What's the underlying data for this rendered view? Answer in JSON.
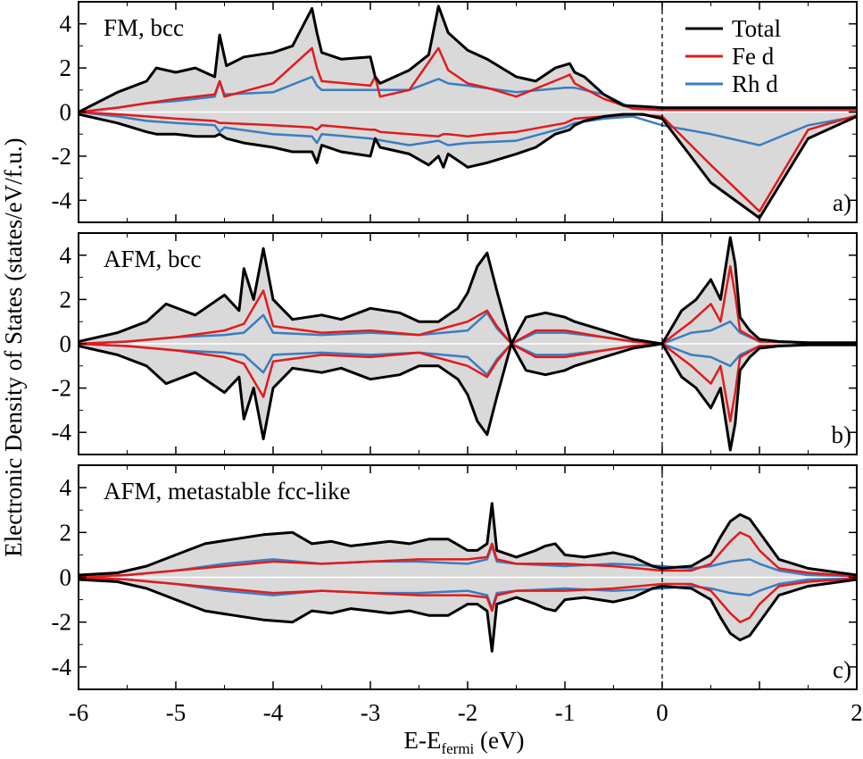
{
  "figure": {
    "ylabel": "Electronic Density of States (states/eV/f.u.)",
    "xlabel_main": "E-E",
    "xlabel_sub": "fermi",
    "xlabel_tail": " (eV)",
    "colors": {
      "total": "#000000",
      "fe": "#e31a1c",
      "rh": "#3a7dc0",
      "fill": "#d9d9d9"
    }
  },
  "chart_data": [
    {
      "type": "line",
      "panel_title": "FM, bcc",
      "panel_tag": "a)",
      "legend": {
        "placement": "top-right",
        "entries": [
          {
            "key": "total",
            "label": "Total"
          },
          {
            "key": "fe",
            "label": "Fe d"
          },
          {
            "key": "rh",
            "label": "Rh d"
          }
        ]
      },
      "xlim": [
        -6,
        2
      ],
      "ylim": [
        -5,
        5
      ],
      "xticks": [
        -6,
        -5,
        -4,
        -3,
        -2,
        -1,
        0,
        2
      ],
      "yticks": [
        4,
        2,
        0,
        -2,
        -4
      ],
      "fermi_line_x": 0,
      "series": [
        {
          "key": "total",
          "x": [
            -6,
            -5.6,
            -5.3,
            -5.2,
            -5.0,
            -4.8,
            -4.6,
            -4.55,
            -4.48,
            -4.3,
            -4.0,
            -3.8,
            -3.6,
            -3.55,
            -3.5,
            -3.3,
            -3.0,
            -2.95,
            -2.9,
            -2.6,
            -2.4,
            -2.3,
            -2.25,
            -2.2,
            -2.0,
            -1.8,
            -1.5,
            -1.3,
            -1.1,
            -0.95,
            -0.9,
            -0.8,
            -0.6,
            -0.4,
            -0.2,
            0,
            0.5,
            1.0,
            1.5,
            2.0
          ],
          "up": [
            0,
            0.9,
            1.4,
            2.0,
            1.8,
            2.0,
            1.6,
            3.5,
            2.1,
            2.5,
            2.7,
            3.0,
            4.7,
            3.6,
            2.7,
            2.4,
            2.5,
            1.6,
            1.3,
            1.9,
            2.6,
            4.8,
            4.2,
            3.6,
            2.8,
            2.4,
            1.6,
            1.4,
            2.0,
            2.2,
            1.8,
            1.6,
            0.8,
            0.3,
            0.25,
            0.2,
            0.2,
            0.2,
            0.2,
            0.2
          ],
          "down": [
            -0.1,
            -0.5,
            -0.9,
            -1.0,
            -1.0,
            -1.1,
            -1.1,
            -1.0,
            -1.2,
            -1.4,
            -1.6,
            -1.8,
            -1.8,
            -2.3,
            -1.5,
            -1.8,
            -2.0,
            -1.2,
            -1.6,
            -1.9,
            -2.4,
            -2.0,
            -2.5,
            -1.9,
            -2.5,
            -2.3,
            -1.9,
            -1.6,
            -1.0,
            -0.8,
            -0.6,
            -0.4,
            -0.2,
            -0.1,
            -0.1,
            -0.3,
            -3.2,
            -4.8,
            -1.2,
            -0.2
          ]
        },
        {
          "key": "fe",
          "x": [
            -6,
            -5.6,
            -5.3,
            -5.0,
            -4.6,
            -4.55,
            -4.5,
            -4.0,
            -3.6,
            -3.55,
            -3.5,
            -3.0,
            -2.95,
            -2.9,
            -2.6,
            -2.3,
            -2.25,
            -2.2,
            -2.0,
            -1.8,
            -1.5,
            -1.0,
            -0.95,
            -0.9,
            -0.6,
            -0.3,
            0,
            0.5,
            1.0,
            1.5,
            2.0
          ],
          "up": [
            0,
            0.2,
            0.4,
            0.6,
            0.8,
            1.4,
            0.7,
            1.3,
            2.9,
            2.0,
            1.4,
            1.2,
            1.6,
            0.7,
            1.0,
            2.9,
            2.4,
            1.9,
            1.3,
            1.1,
            0.7,
            1.6,
            1.7,
            1.3,
            0.6,
            0.15,
            0.1,
            0.1,
            0.1,
            0.1,
            0.1
          ],
          "down": [
            0,
            -0.1,
            -0.2,
            -0.3,
            -0.4,
            -0.5,
            -0.5,
            -0.6,
            -0.7,
            -0.8,
            -0.6,
            -0.8,
            -0.8,
            -0.9,
            -1.0,
            -1.1,
            -1.0,
            -1.0,
            -1.1,
            -1.0,
            -0.9,
            -0.5,
            -0.4,
            -0.3,
            -0.2,
            -0.1,
            -0.2,
            -2.4,
            -4.5,
            -0.8,
            -0.15
          ]
        },
        {
          "key": "rh",
          "x": [
            -6,
            -5.6,
            -5.3,
            -5.0,
            -4.6,
            -4.55,
            -4.5,
            -4.0,
            -3.6,
            -3.55,
            -3.5,
            -3.0,
            -2.6,
            -2.3,
            -2.2,
            -2.0,
            -1.5,
            -1.0,
            -0.9,
            -0.6,
            -0.3,
            0,
            0.5,
            1.0,
            1.5,
            2.0
          ],
          "up": [
            0,
            0.2,
            0.4,
            0.5,
            0.7,
            1.4,
            0.8,
            0.9,
            1.6,
            1.2,
            1.0,
            1.0,
            1.0,
            1.5,
            1.3,
            1.2,
            0.9,
            1.1,
            1.1,
            0.8,
            0.15,
            0.1,
            0.1,
            0.1,
            0.1,
            0.1
          ],
          "down": [
            0,
            -0.2,
            -0.4,
            -0.5,
            -0.6,
            -0.9,
            -0.7,
            -1.0,
            -1.1,
            -1.4,
            -1.0,
            -1.2,
            -1.5,
            -1.3,
            -1.5,
            -1.4,
            -1.3,
            -0.7,
            -0.5,
            -0.3,
            -0.2,
            -0.6,
            -1.0,
            -1.5,
            -0.6,
            -0.2
          ]
        }
      ]
    },
    {
      "type": "line",
      "panel_title": "AFM, bcc",
      "panel_tag": "b)",
      "xlim": [
        -6,
        2
      ],
      "ylim": [
        -5,
        5
      ],
      "xticks": [
        -6,
        -5,
        -4,
        -3,
        -2,
        -1,
        0,
        2
      ],
      "yticks": [
        4,
        2,
        0,
        -2,
        -4
      ],
      "fermi_line_x": 0,
      "series": [
        {
          "key": "total",
          "x": [
            -6,
            -5.6,
            -5.3,
            -5.1,
            -4.8,
            -4.5,
            -4.35,
            -4.3,
            -4.2,
            -4.1,
            -4.0,
            -3.8,
            -3.5,
            -3.3,
            -3.0,
            -2.7,
            -2.5,
            -2.3,
            -2.1,
            -2.0,
            -1.9,
            -1.8,
            -1.7,
            -1.55,
            -1.4,
            -1.2,
            -1.0,
            -0.9,
            -0.6,
            -0.3,
            0,
            0.2,
            0.35,
            0.5,
            0.6,
            0.7,
            0.75,
            0.8,
            0.9,
            1.0,
            1.2,
            1.5,
            2.0
          ],
          "up": [
            0.1,
            0.5,
            1.0,
            1.8,
            1.3,
            2.2,
            1.5,
            3.4,
            2.0,
            4.3,
            2.0,
            1.1,
            1.3,
            1.1,
            1.6,
            1.4,
            1.0,
            1.0,
            1.6,
            2.3,
            3.5,
            4.1,
            2.4,
            0,
            1.2,
            1.4,
            1.2,
            1.0,
            0.6,
            0.2,
            0.0,
            1.5,
            2.0,
            2.9,
            2.0,
            4.8,
            3.6,
            1.2,
            0.6,
            0.2,
            0.1,
            0.05,
            0.05
          ],
          "down": [
            -0.1,
            -0.5,
            -1.0,
            -1.8,
            -1.3,
            -2.2,
            -1.5,
            -3.4,
            -2.0,
            -4.3,
            -2.0,
            -1.1,
            -1.3,
            -1.1,
            -1.6,
            -1.4,
            -1.0,
            -1.0,
            -1.6,
            -2.3,
            -3.5,
            -4.1,
            -2.4,
            0,
            -1.2,
            -1.4,
            -1.2,
            -1.0,
            -0.6,
            -0.2,
            0.0,
            -1.5,
            -2.0,
            -2.9,
            -2.0,
            -4.8,
            -3.6,
            -1.2,
            -0.6,
            -0.2,
            -0.1,
            -0.05,
            -0.05
          ]
        },
        {
          "key": "fe",
          "x": [
            -6,
            -5.5,
            -5.0,
            -4.5,
            -4.3,
            -4.1,
            -4.0,
            -3.5,
            -3.0,
            -2.5,
            -2.0,
            -1.8,
            -1.7,
            -1.55,
            -1.3,
            -1.0,
            -0.6,
            -0.3,
            0,
            0.3,
            0.5,
            0.6,
            0.7,
            0.75,
            0.8,
            1.0,
            1.5,
            2.0
          ],
          "up": [
            0,
            0.1,
            0.3,
            0.6,
            0.9,
            2.4,
            0.8,
            0.5,
            0.6,
            0.4,
            1.0,
            1.5,
            0.8,
            0,
            0.6,
            0.6,
            0.3,
            0.1,
            0,
            1.0,
            1.8,
            1.0,
            3.5,
            2.2,
            0.6,
            0.1,
            0.05,
            0.05
          ],
          "down": [
            0,
            -0.1,
            -0.3,
            -0.6,
            -0.9,
            -2.4,
            -0.8,
            -0.5,
            -0.6,
            -0.4,
            -1.0,
            -1.5,
            -0.8,
            0,
            -0.6,
            -0.6,
            -0.3,
            -0.1,
            0,
            -1.0,
            -1.8,
            -1.0,
            -3.5,
            -2.2,
            -0.6,
            -0.1,
            -0.05,
            -0.05
          ]
        },
        {
          "key": "rh",
          "x": [
            -6,
            -5.5,
            -5.0,
            -4.5,
            -4.3,
            -4.1,
            -4.0,
            -3.5,
            -3.0,
            -2.5,
            -2.0,
            -1.8,
            -1.7,
            -1.55,
            -1.3,
            -1.0,
            -0.6,
            -0.3,
            0,
            0.3,
            0.5,
            0.7,
            0.8,
            1.0,
            1.5,
            2.0
          ],
          "up": [
            0,
            0.1,
            0.3,
            0.4,
            0.5,
            1.3,
            0.5,
            0.4,
            0.5,
            0.4,
            0.6,
            1.4,
            0.7,
            0,
            0.5,
            0.5,
            0.3,
            0.1,
            0,
            0.5,
            0.6,
            1.0,
            0.5,
            0.1,
            0.05,
            0.05
          ],
          "down": [
            0,
            -0.1,
            -0.3,
            -0.4,
            -0.5,
            -1.3,
            -0.5,
            -0.4,
            -0.5,
            -0.4,
            -0.6,
            -1.4,
            -0.7,
            0,
            -0.5,
            -0.5,
            -0.3,
            -0.1,
            0,
            -0.5,
            -0.6,
            -1.0,
            -0.5,
            -0.1,
            -0.05,
            -0.05
          ]
        }
      ]
    },
    {
      "type": "line",
      "panel_title": "AFM, metastable fcc-like",
      "panel_tag": "c)",
      "xlim": [
        -6,
        2
      ],
      "ylim": [
        -5,
        5
      ],
      "xticks": [
        -6,
        -5,
        -4,
        -3,
        -2,
        -1,
        0,
        2
      ],
      "yticks": [
        4,
        2,
        0,
        -2,
        -4
      ],
      "fermi_line_x": 0,
      "series": [
        {
          "key": "total",
          "x": [
            -6,
            -5.6,
            -5.3,
            -5.0,
            -4.7,
            -4.4,
            -4.1,
            -3.8,
            -3.6,
            -3.4,
            -3.2,
            -3.0,
            -2.8,
            -2.6,
            -2.4,
            -2.2,
            -2.0,
            -1.9,
            -1.8,
            -1.75,
            -1.7,
            -1.5,
            -1.3,
            -1.2,
            -1.1,
            -1.0,
            -0.8,
            -0.5,
            -0.3,
            -0.1,
            0,
            0.3,
            0.5,
            0.6,
            0.7,
            0.8,
            0.9,
            1.0,
            1.2,
            1.5,
            2.0
          ],
          "up": [
            0.1,
            0.2,
            0.5,
            1.0,
            1.5,
            1.7,
            1.9,
            2.0,
            1.5,
            1.6,
            1.4,
            1.5,
            1.6,
            1.5,
            1.7,
            1.7,
            1.2,
            1.2,
            1.5,
            3.3,
            1.2,
            0.9,
            1.2,
            1.4,
            1.5,
            1.0,
            0.9,
            1.1,
            0.9,
            0.5,
            0.4,
            0.5,
            1.0,
            1.8,
            2.5,
            2.8,
            2.6,
            2.0,
            0.8,
            0.4,
            0.1
          ],
          "down": [
            -0.1,
            -0.2,
            -0.5,
            -1.0,
            -1.5,
            -1.7,
            -1.9,
            -2.0,
            -1.5,
            -1.6,
            -1.4,
            -1.5,
            -1.6,
            -1.5,
            -1.7,
            -1.7,
            -1.2,
            -1.2,
            -1.5,
            -3.3,
            -1.2,
            -0.9,
            -1.2,
            -1.4,
            -1.5,
            -1.0,
            -0.9,
            -1.1,
            -0.9,
            -0.5,
            -0.4,
            -0.5,
            -1.0,
            -1.8,
            -2.5,
            -2.8,
            -2.6,
            -2.0,
            -0.8,
            -0.4,
            -0.1
          ]
        },
        {
          "key": "fe",
          "x": [
            -6,
            -5.5,
            -5.0,
            -4.5,
            -4.0,
            -3.5,
            -3.0,
            -2.5,
            -2.0,
            -1.8,
            -1.75,
            -1.7,
            -1.5,
            -1.0,
            -0.5,
            0,
            0.3,
            0.5,
            0.7,
            0.8,
            0.9,
            1.0,
            1.2,
            1.5,
            2.0
          ],
          "up": [
            0,
            0.1,
            0.3,
            0.5,
            0.7,
            0.6,
            0.7,
            0.8,
            0.8,
            0.9,
            1.5,
            0.8,
            0.6,
            0.6,
            0.5,
            0.3,
            0.3,
            0.6,
            1.6,
            2.0,
            1.8,
            1.2,
            0.4,
            0.2,
            0.05
          ],
          "down": [
            0,
            -0.1,
            -0.3,
            -0.5,
            -0.7,
            -0.6,
            -0.7,
            -0.8,
            -0.8,
            -0.9,
            -1.5,
            -0.8,
            -0.6,
            -0.6,
            -0.5,
            -0.3,
            -0.3,
            -0.6,
            -1.6,
            -2.0,
            -1.8,
            -1.2,
            -0.4,
            -0.2,
            -0.05
          ]
        },
        {
          "key": "rh",
          "x": [
            -6,
            -5.5,
            -5.0,
            -4.5,
            -4.0,
            -3.5,
            -3.0,
            -2.5,
            -2.0,
            -1.8,
            -1.75,
            -1.7,
            -1.5,
            -1.0,
            -0.5,
            0,
            0.3,
            0.5,
            0.7,
            0.9,
            1.0,
            1.2,
            1.5,
            2.0
          ],
          "up": [
            0,
            0.1,
            0.3,
            0.6,
            0.8,
            0.6,
            0.7,
            0.7,
            0.6,
            0.8,
            1.4,
            0.7,
            0.6,
            0.5,
            0.6,
            0.5,
            0.4,
            0.5,
            0.7,
            0.8,
            0.6,
            0.3,
            0.1,
            0.05
          ],
          "down": [
            0,
            -0.1,
            -0.3,
            -0.6,
            -0.8,
            -0.6,
            -0.7,
            -0.7,
            -0.6,
            -0.8,
            -1.4,
            -0.7,
            -0.6,
            -0.5,
            -0.6,
            -0.5,
            -0.4,
            -0.5,
            -0.7,
            -0.8,
            -0.6,
            -0.3,
            -0.1,
            -0.05
          ]
        }
      ]
    }
  ]
}
